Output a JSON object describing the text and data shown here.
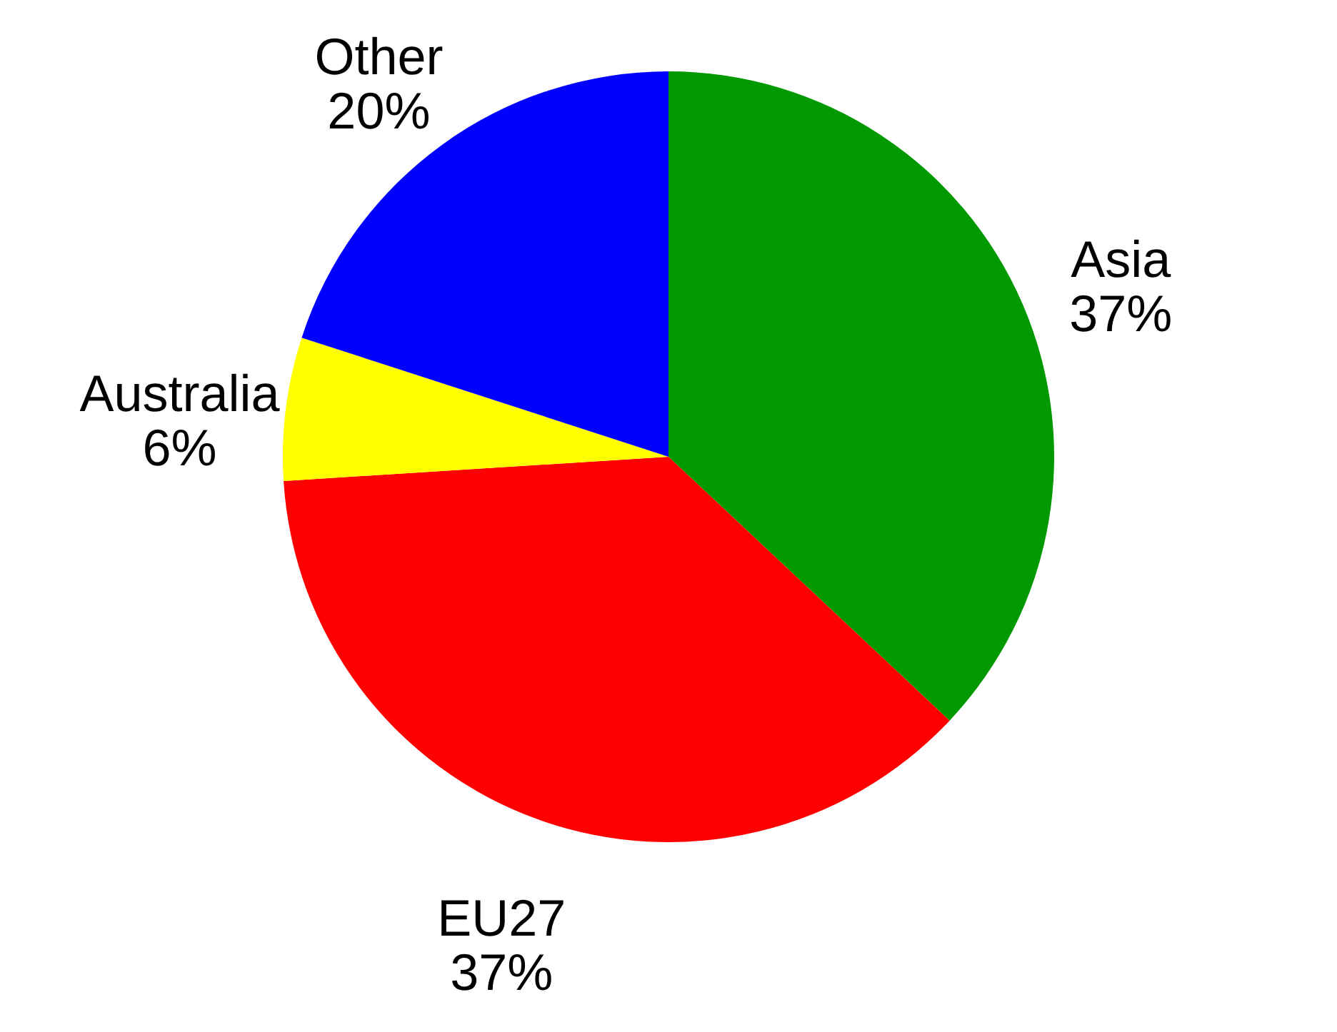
{
  "chart_data": {
    "type": "pie",
    "categories": [
      "Asia",
      "EU27",
      "Australia",
      "Other"
    ],
    "values": [
      37,
      37,
      6,
      20
    ],
    "value_labels": [
      "37%",
      "37%",
      "6%",
      "20%"
    ],
    "colors": [
      "#009900",
      "#ff0000",
      "#ffff00",
      "#0000ff"
    ]
  }
}
